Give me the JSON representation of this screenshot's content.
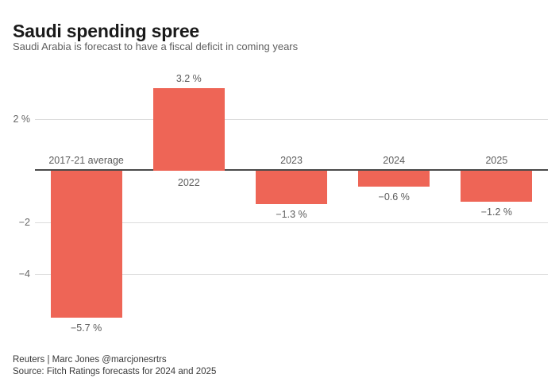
{
  "header": {
    "title": "Saudi spending spree",
    "subtitle": "Saudi Arabia is forecast to have a fiscal deficit in coming years"
  },
  "chart_data": {
    "type": "bar",
    "title": "Saudi spending spree",
    "subtitle": "Saudi Arabia is forecast to have a fiscal deficit in coming years",
    "categories": [
      "2017-21 average",
      "2022",
      "2023",
      "2024",
      "2025"
    ],
    "values": [
      -5.7,
      3.2,
      -1.3,
      -0.6,
      -1.2
    ],
    "value_labels": [
      "−5.7 %",
      "3.2 %",
      "−1.3 %",
      "−0.6 %",
      "−1.2 %"
    ],
    "unit": "%",
    "xlabel": "",
    "ylabel": "",
    "ylim": [
      -6.3,
      3.6
    ],
    "yticks": [
      {
        "value": 2,
        "label": "2 %"
      },
      {
        "value": -2,
        "label": "−2"
      },
      {
        "value": -4,
        "label": "−4"
      }
    ],
    "grid": "horizontal",
    "legend": "none",
    "colors": {
      "bar": "#ee6556",
      "zero_line": "#4a4a4a",
      "gridline": "#dcdcdc",
      "label_text": "#5c5c5c"
    }
  },
  "footer": {
    "credit": "Reuters | Marc Jones @marcjonesrtrs",
    "source": "Source: Fitch Ratings forecasts for 2024 and 2025"
  }
}
